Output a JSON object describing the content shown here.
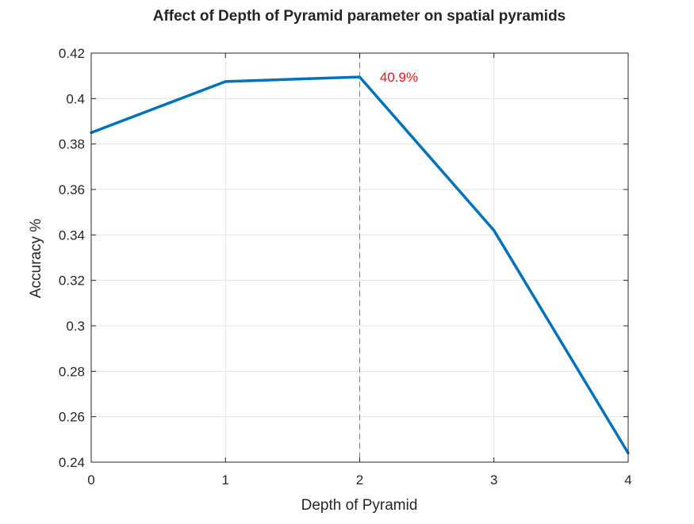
{
  "chart_data": {
    "type": "line",
    "title": "Affect of Depth of Pyramid parameter on spatial pyramids",
    "xlabel": "Depth of Pyramid",
    "ylabel": "Accuracy %",
    "xlim": [
      0,
      4
    ],
    "ylim": [
      0.24,
      0.42
    ],
    "xticks": [
      0,
      1,
      2,
      3,
      4
    ],
    "xtick_labels": [
      "0",
      "1",
      "2",
      "3",
      "4"
    ],
    "yticks": [
      0.24,
      0.26,
      0.28,
      0.3,
      0.32,
      0.34,
      0.36,
      0.38,
      0.4,
      0.42
    ],
    "ytick_labels": [
      "0.24",
      "0.26",
      "0.28",
      "0.3",
      "0.32",
      "0.34",
      "0.36",
      "0.38",
      "0.4",
      "0.42"
    ],
    "grid": true,
    "series": [
      {
        "x": [
          0,
          1,
          2,
          3,
          4
        ],
        "y": [
          0.385,
          0.4075,
          0.4095,
          0.342,
          0.244
        ],
        "color": "#0072BD"
      }
    ],
    "reference_line": {
      "orientation": "vertical",
      "x": 2,
      "style": "dashed",
      "color": "#D95F5F"
    },
    "annotation": {
      "text": "40.9%",
      "x": 2.15,
      "y": 0.4075,
      "color": "#E8161C"
    }
  }
}
